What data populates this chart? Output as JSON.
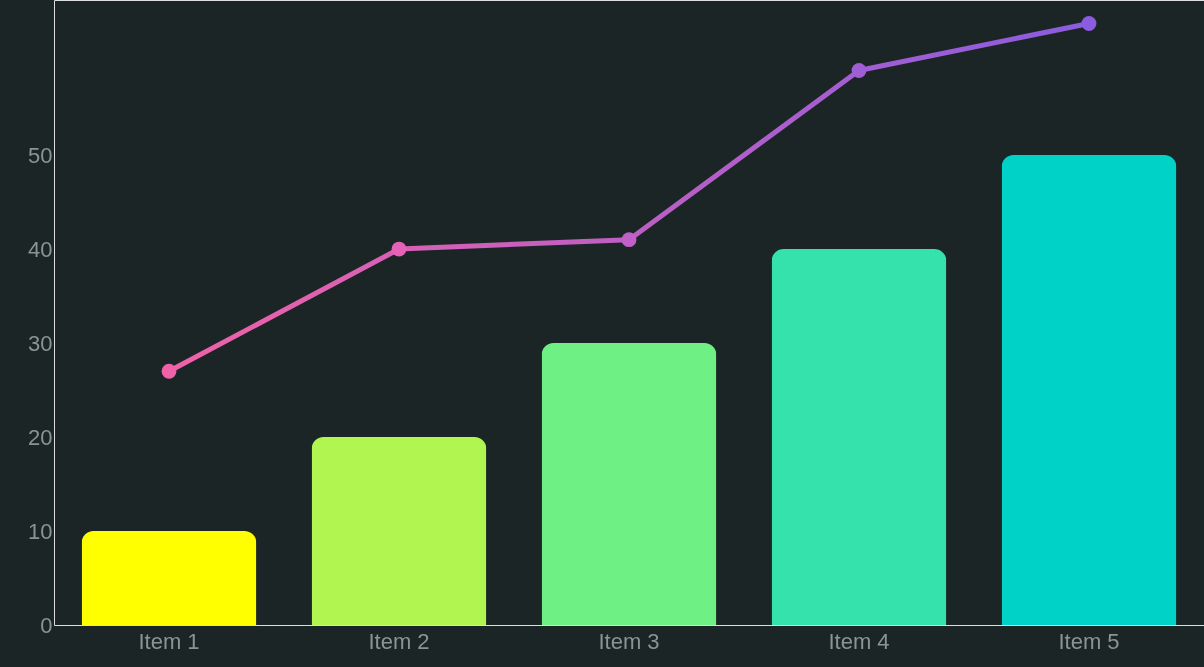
{
  "chart_data": {
    "type": "bar",
    "categories": [
      "Item 1",
      "Item 2",
      "Item 3",
      "Item 4",
      "Item 5"
    ],
    "values": [
      10,
      20,
      30,
      40,
      50
    ],
    "colors": [
      "#ffff00",
      "#b0f550",
      "#6ff085",
      "#36e2ac",
      "#00d2c8"
    ],
    "series": [
      {
        "type": "line",
        "colors": [
          "#f062a8",
          "#e662b8",
          "#c060c8",
          "#a05ed6",
          "#8a5ce0"
        ],
        "values": [
          27,
          40,
          41,
          59,
          64
        ]
      }
    ],
    "ylim": [
      0,
      66.5
    ],
    "yticks": [
      0,
      10,
      20,
      30,
      40,
      50
    ],
    "marker": "circle"
  }
}
